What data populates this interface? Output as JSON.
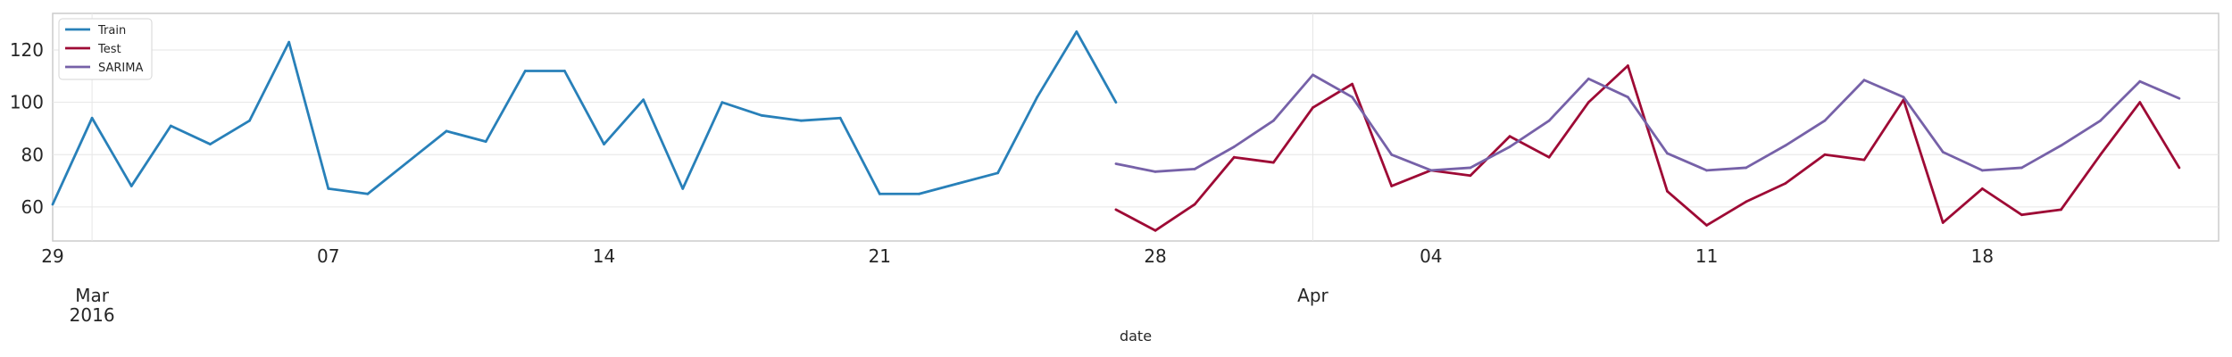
{
  "chart_data": {
    "type": "line",
    "xlabel": "date",
    "ylabel": "",
    "x_range": [
      "2016-02-29",
      "2016-04-24"
    ],
    "ylim": [
      47,
      134
    ],
    "grid": true,
    "legend_position": "top-left",
    "y_ticks": [
      60,
      80,
      100,
      120
    ],
    "x_ticks": [
      {
        "date": "2016-02-29",
        "label": "29"
      },
      {
        "date": "2016-03-07",
        "label": "07"
      },
      {
        "date": "2016-03-14",
        "label": "14"
      },
      {
        "date": "2016-03-21",
        "label": "21"
      },
      {
        "date": "2016-03-28",
        "label": "28"
      },
      {
        "date": "2016-04-04",
        "label": "04"
      },
      {
        "date": "2016-04-11",
        "label": "11"
      },
      {
        "date": "2016-04-18",
        "label": "18"
      }
    ],
    "month_labels": [
      {
        "date": "2016-03-01",
        "month": "Mar",
        "year": "2016"
      },
      {
        "date": "2016-04-01",
        "month": "Apr",
        "year": ""
      }
    ],
    "series": [
      {
        "name": "Train",
        "color": "#2880b9",
        "start_date": "2016-02-29",
        "values": [
          61,
          94,
          68,
          91,
          84,
          93,
          123,
          67,
          65,
          77,
          89,
          85,
          112,
          112,
          84,
          101,
          67,
          100,
          95,
          93,
          94,
          65,
          65,
          69,
          73,
          102,
          127,
          100
        ]
      },
      {
        "name": "Test",
        "color": "#9e0a35",
        "start_date": "2016-03-27",
        "values": [
          59,
          51,
          61,
          79,
          77,
          98,
          107,
          68,
          74,
          72,
          87,
          79,
          100,
          114,
          66,
          53,
          62,
          69,
          80,
          78,
          101,
          54,
          67,
          57,
          59,
          80,
          100,
          75
        ]
      },
      {
        "name": "SARIMA",
        "color": "#7661a8",
        "start_date": "2016-03-27",
        "values": [
          76.5,
          73.5,
          74.5,
          83,
          93,
          110.5,
          102,
          80,
          74,
          75,
          83,
          93,
          109,
          102,
          80.5,
          74,
          75,
          83.5,
          93,
          108.5,
          102,
          81,
          74,
          75,
          83.5,
          93,
          108,
          101.5
        ]
      }
    ]
  }
}
